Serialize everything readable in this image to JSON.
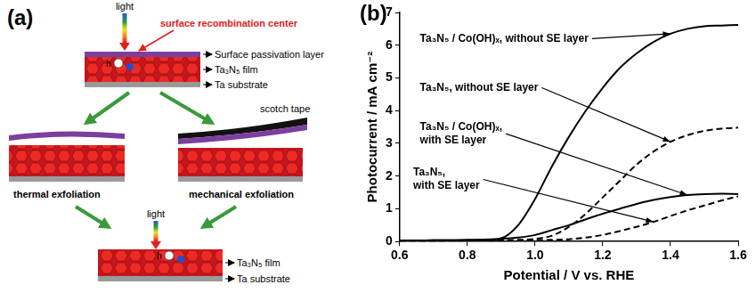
{
  "panel_a": {
    "label": "(a)",
    "top": {
      "light": "light",
      "annotation": "surface recombination center",
      "carrier": "h",
      "layers": [
        "Surface passivation layer",
        "Ta₃N₅ film",
        "Ta substrate"
      ]
    },
    "left": {
      "caption": "thermal exfoliation"
    },
    "right": {
      "tape": "scotch tape",
      "caption": "mechanical exfoliation"
    },
    "bottom": {
      "light": "light",
      "carrier": "h",
      "layers": [
        "Ta₃N₅ film",
        "Ta substrate"
      ]
    }
  },
  "chart_data": {
    "type": "line",
    "title": "(b)",
    "x_label": "Potential / V vs. RHE",
    "y_label": "Photocurrent / mA cm⁻²",
    "x": [
      0.6,
      0.65,
      0.7,
      0.75,
      0.8,
      0.85,
      0.9,
      0.95,
      1.0,
      1.05,
      1.1,
      1.15,
      1.2,
      1.25,
      1.3,
      1.35,
      1.4,
      1.45,
      1.5,
      1.55,
      1.6
    ],
    "xlim": [
      0.6,
      1.6
    ],
    "xticks": [
      0.6,
      0.8,
      {
        "value": 1,
        "label": "1.0"
      },
      1.2,
      1.4,
      1.6
    ],
    "ylim": [
      0,
      7
    ],
    "yticks": [
      0,
      1,
      2,
      3,
      4,
      5,
      6,
      7
    ],
    "grid": false,
    "series": [
      {
        "name": "Ta₃N₅ / Co(OH)ₓ, without SE layer",
        "color": "#000000",
        "line_style": "solid",
        "values": [
          0.03,
          0.03,
          0.04,
          0.04,
          0.04,
          0.05,
          0.1,
          0.5,
          1.3,
          2.3,
          3.2,
          4.0,
          4.7,
          5.3,
          5.75,
          6.1,
          6.35,
          6.5,
          6.58,
          6.6,
          6.62
        ]
      },
      {
        "name": "Ta₃N₅, without SE layer",
        "color": "#000000",
        "line_style": "dashed",
        "values": [
          0.02,
          0.02,
          0.02,
          0.03,
          0.03,
          0.03,
          0.04,
          0.05,
          0.08,
          0.18,
          0.45,
          0.85,
          1.35,
          1.85,
          2.35,
          2.75,
          3.05,
          3.25,
          3.38,
          3.45,
          3.48
        ]
      },
      {
        "name": "Ta₃N₅ / Co(OH)ₓ, with SE layer",
        "color": "#000000",
        "line_style": "solid",
        "values": [
          0.03,
          0.03,
          0.04,
          0.04,
          0.05,
          0.06,
          0.08,
          0.12,
          0.2,
          0.35,
          0.5,
          0.68,
          0.85,
          1.0,
          1.15,
          1.27,
          1.36,
          1.42,
          1.45,
          1.46,
          1.45
        ]
      },
      {
        "name": "Ta₃N₅, with SE layer",
        "color": "#000000",
        "line_style": "dashed",
        "values": [
          0.01,
          0.01,
          0.01,
          0.01,
          0.02,
          0.02,
          0.02,
          0.03,
          0.04,
          0.05,
          0.07,
          0.12,
          0.2,
          0.32,
          0.45,
          0.6,
          0.78,
          0.95,
          1.1,
          1.25,
          1.38
        ]
      }
    ]
  }
}
